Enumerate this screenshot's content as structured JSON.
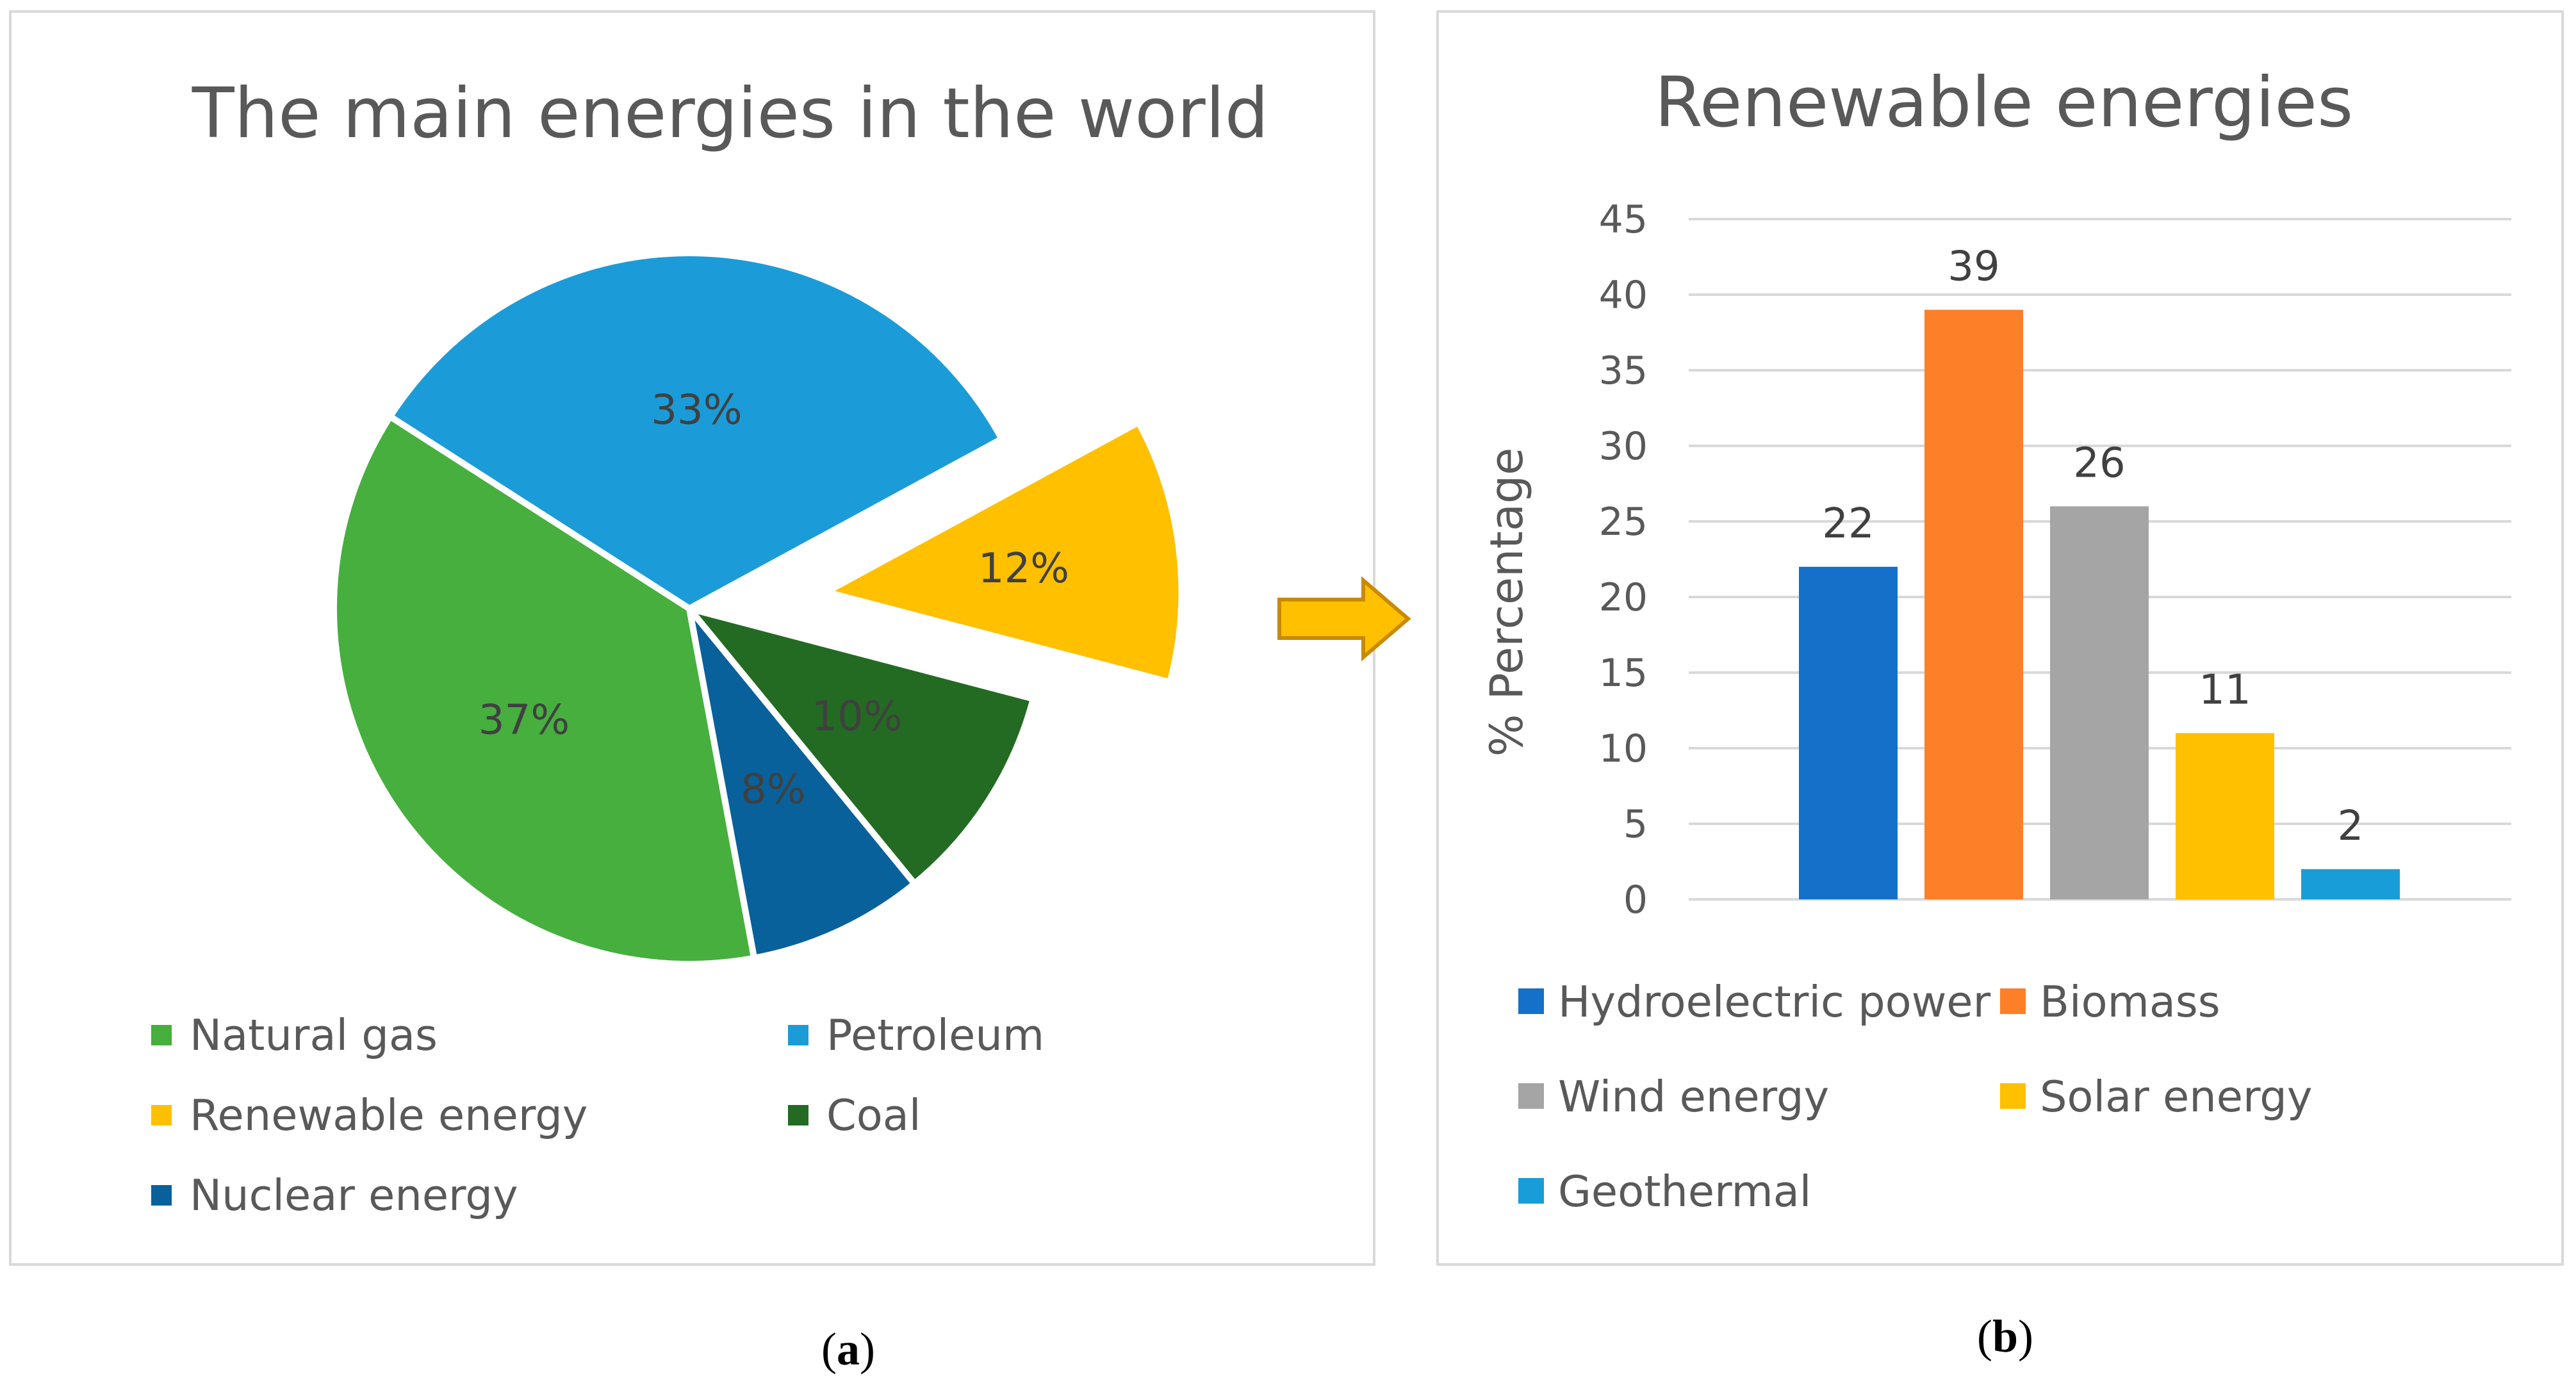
{
  "chart_data": [
    {
      "type": "pie",
      "title": "The main energies in the world",
      "categories": [
        "Natural gas",
        "Petroleum",
        "Renewable energy",
        "Coal",
        "Nuclear energy"
      ],
      "values": [
        37,
        33,
        12,
        10,
        8
      ],
      "labels": [
        "37%",
        "33%",
        "12%",
        "10%",
        "8%"
      ],
      "colors": [
        "#46af3e",
        "#1b9cd8",
        "#ffc000",
        "#236b22",
        "#08619b"
      ],
      "exploded": [
        false,
        false,
        true,
        false,
        false
      ],
      "legend_position": "bottom",
      "caption": {
        "open": "(",
        "letter": "a",
        "close": ")"
      }
    },
    {
      "type": "bar",
      "title": "Renewable energies",
      "categories": [
        "Hydroelectric power",
        "Biomass",
        "Wind energy",
        "Solar energy",
        "Geothermal"
      ],
      "values": [
        22,
        39,
        26,
        11,
        2
      ],
      "data_labels": [
        "22",
        "39",
        "26",
        "11",
        "2"
      ],
      "colors": [
        "#1470c8",
        "#fd7f27",
        "#a5a5a5",
        "#ffc000",
        "#199dd9"
      ],
      "ylabel": "% Percentage",
      "xlabel": "",
      "ylim": [
        0,
        45
      ],
      "yticks": [
        "0",
        "5",
        "10",
        "15",
        "20",
        "25",
        "30",
        "35",
        "40",
        "45"
      ],
      "grid": true,
      "legend_position": "bottom",
      "caption": {
        "open": "(",
        "letter": "b",
        "close": ")"
      }
    }
  ],
  "connector": {
    "icon": "arrow-right-icon",
    "color": "#ffc000",
    "stroke": "#c98a00"
  }
}
